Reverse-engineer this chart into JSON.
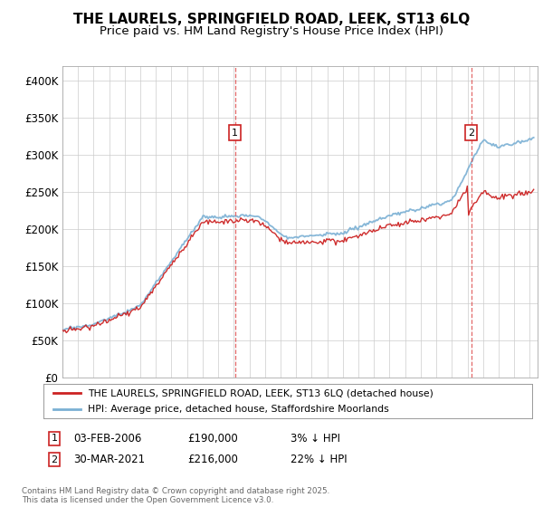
{
  "title": "THE LAURELS, SPRINGFIELD ROAD, LEEK, ST13 6LQ",
  "subtitle": "Price paid vs. HM Land Registry's House Price Index (HPI)",
  "background_color": "#ffffff",
  "plot_bg_color": "#ffffff",
  "ylim": [
    0,
    420000
  ],
  "yticks": [
    0,
    50000,
    100000,
    150000,
    200000,
    250000,
    300000,
    350000,
    400000
  ],
  "ytick_labels": [
    "£0",
    "£50K",
    "£100K",
    "£150K",
    "£200K",
    "£250K",
    "£300K",
    "£350K",
    "£400K"
  ],
  "sale1_date": "03-FEB-2006",
  "sale1_price": 190000,
  "sale1_pct": "3%",
  "sale1_x": 2006.08,
  "sale2_date": "30-MAR-2021",
  "sale2_price": 216000,
  "sale2_pct": "22%",
  "sale2_x": 2021.24,
  "hpi_color": "#7ab0d4",
  "price_color": "#cc2222",
  "vline_color": "#dd4444",
  "legend_label_price": "THE LAURELS, SPRINGFIELD ROAD, LEEK, ST13 6LQ (detached house)",
  "legend_label_hpi": "HPI: Average price, detached house, Staffordshire Moorlands",
  "footnote": "Contains HM Land Registry data © Crown copyright and database right 2025.\nThis data is licensed under the Open Government Licence v3.0.",
  "grid_color": "#cccccc",
  "title_fontsize": 11,
  "subtitle_fontsize": 9.5
}
